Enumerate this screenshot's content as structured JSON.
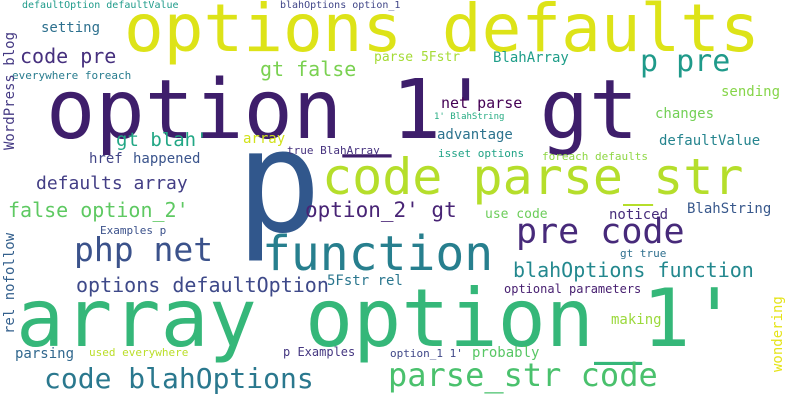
{
  "words": [
    {
      "text": "array option_1'",
      "color": "#35b779"
    },
    {
      "text": "option_1' gt",
      "color": "#3e1e6b"
    },
    {
      "text": "p",
      "color": "#31578c"
    },
    {
      "text": "options defaults",
      "color": "#dde318"
    },
    {
      "text": "code parse_str",
      "color": "#b5de2b"
    },
    {
      "text": "function",
      "color": "#277f8e"
    },
    {
      "text": "pre code",
      "color": "#472a7a"
    },
    {
      "text": "php net",
      "color": "#3b528b"
    },
    {
      "text": "code blahOptions",
      "color": "#2a788e"
    },
    {
      "text": "parse_str code",
      "color": "#4ac16d"
    },
    {
      "text": "p pre",
      "color": "#1f9a8a"
    },
    {
      "text": "blahOptions function",
      "color": "#23888e"
    },
    {
      "text": "options defaultOption",
      "color": "#3e4989"
    },
    {
      "text": "defaults array",
      "color": "#433e85"
    },
    {
      "text": "option_2' gt",
      "color": "#482475"
    },
    {
      "text": "code pre",
      "color": "#46307e"
    },
    {
      "text": "gt false",
      "color": "#7ad151"
    },
    {
      "text": "false option_2'",
      "color": "#5ec962"
    },
    {
      "text": "gt blah'",
      "color": "#22a785"
    },
    {
      "text": "net parse",
      "color": "#440154"
    },
    {
      "text": "setting",
      "color": "#2d708e"
    },
    {
      "text": "parse 5Fstr",
      "color": "#a5db36"
    },
    {
      "text": "BlahArray",
      "color": "#1f9e89"
    },
    {
      "text": "sending",
      "color": "#86d549"
    },
    {
      "text": "changes",
      "color": "#73d056"
    },
    {
      "text": "advantage",
      "color": "#2c738e"
    },
    {
      "text": "defaultValue",
      "color": "#25848e"
    },
    {
      "text": "href",
      "color": "#414487"
    },
    {
      "text": "happened",
      "color": "#3a548c"
    },
    {
      "text": "true BlahArray",
      "color": "#46327e"
    },
    {
      "text": "isset options",
      "color": "#20a386"
    },
    {
      "text": "foreach defaults",
      "color": "#8fd744"
    },
    {
      "text": "everywhere foreach",
      "color": "#287c8e"
    },
    {
      "text": "array",
      "color": "#d2e21b"
    },
    {
      "text": "use code",
      "color": "#6ccd5a"
    },
    {
      "text": "noticed",
      "color": "#472d7b"
    },
    {
      "text": "BlahString",
      "color": "#38588c"
    },
    {
      "text": "Examples p",
      "color": "#3b518b"
    },
    {
      "text": "gt true",
      "color": "#2e6f8e"
    },
    {
      "text": "5Fstr rel",
      "color": "#2a768e"
    },
    {
      "text": "optional parameters",
      "color": "#482071"
    },
    {
      "text": "making",
      "color": "#9bd93c"
    },
    {
      "text": "parsing",
      "color": "#31688e"
    },
    {
      "text": "used everywhere",
      "color": "#bade28"
    },
    {
      "text": "p Examples",
      "color": "#453781"
    },
    {
      "text": "option_1 1'",
      "color": "#3f4788"
    },
    {
      "text": "probably",
      "color": "#58c765"
    },
    {
      "text": "defaultOption defaultValue",
      "color": "#1e9b8a"
    },
    {
      "text": "blahOptions option_1",
      "color": "#404688"
    },
    {
      "text": "1' BlahString",
      "color": "#25ab82"
    },
    {
      "text": "WordPress blog",
      "color": "#443983"
    },
    {
      "text": "rel nofollow",
      "color": "#34608d"
    },
    {
      "text": "wondering",
      "color": "#e5e419"
    }
  ]
}
